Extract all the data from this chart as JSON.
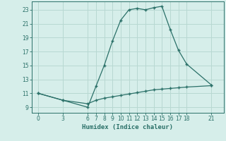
{
  "title": "",
  "xlabel": "Humidex (Indice chaleur)",
  "ylabel": "",
  "background_color": "#d6eeea",
  "grid_color": "#b8d8d2",
  "line_color": "#2a7068",
  "x_ticks": [
    0,
    3,
    6,
    7,
    8,
    9,
    10,
    11,
    12,
    13,
    14,
    15,
    16,
    17,
    18,
    21
  ],
  "y_ticks": [
    9,
    11,
    13,
    15,
    17,
    19,
    21,
    23
  ],
  "ylim": [
    8.2,
    24.2
  ],
  "xlim": [
    -0.8,
    22.5
  ],
  "line1_x": [
    0,
    3,
    6,
    7,
    8,
    9,
    10,
    11,
    12,
    13,
    14,
    15,
    16,
    17,
    18,
    21
  ],
  "line1_y": [
    11,
    10,
    9,
    12,
    15,
    18.5,
    21.5,
    23,
    23.2,
    23.0,
    23.3,
    23.5,
    20.2,
    17.2,
    15.2,
    12.2
  ],
  "line2_x": [
    0,
    3,
    6,
    7,
    8,
    9,
    10,
    11,
    12,
    13,
    14,
    15,
    16,
    17,
    18,
    21
  ],
  "line2_y": [
    11,
    10,
    9.5,
    10.0,
    10.3,
    10.5,
    10.7,
    10.9,
    11.1,
    11.3,
    11.5,
    11.6,
    11.7,
    11.8,
    11.9,
    12.1
  ]
}
